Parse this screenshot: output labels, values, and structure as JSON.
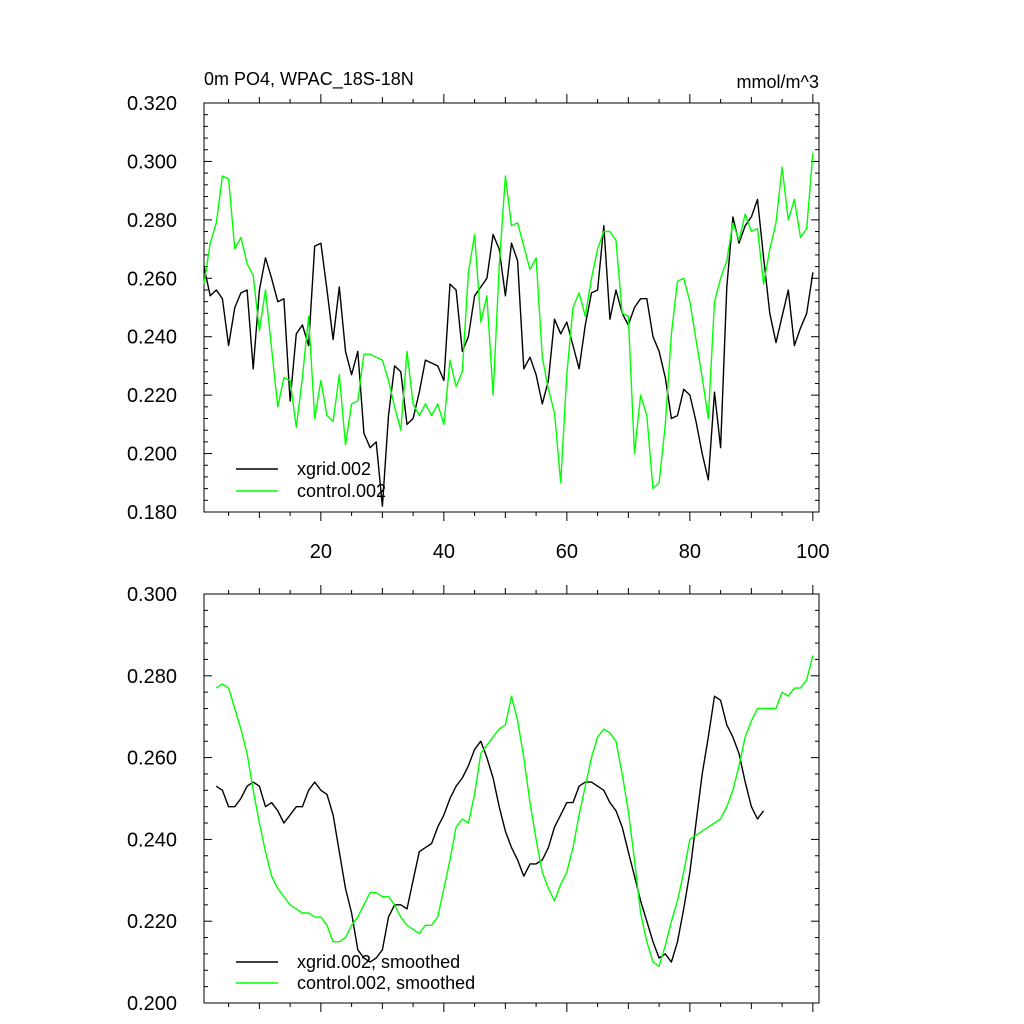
{
  "chart_data": [
    {
      "type": "line",
      "title": "0m PO4, WPAC_18S-18N",
      "units": "mmol/m^3",
      "xlim": [
        1,
        101
      ],
      "ylim": [
        0.18,
        0.32
      ],
      "x_ticks": [
        "20",
        "40",
        "60",
        "80",
        "100"
      ],
      "y_ticks": [
        "0.180",
        "0.200",
        "0.220",
        "0.240",
        "0.260",
        "0.280",
        "0.300",
        "0.320"
      ],
      "legend_position": "bottom-left",
      "series": [
        {
          "name": "xgrid.002",
          "color": "#000000",
          "x_start": 1,
          "values": [
            0.264,
            0.254,
            0.256,
            0.253,
            0.237,
            0.25,
            0.255,
            0.256,
            0.229,
            0.256,
            0.267,
            0.26,
            0.252,
            0.253,
            0.218,
            0.241,
            0.244,
            0.237,
            0.271,
            0.272,
            0.256,
            0.239,
            0.257,
            0.235,
            0.227,
            0.235,
            0.207,
            0.202,
            0.204,
            0.182,
            0.213,
            0.23,
            0.228,
            0.21,
            0.212,
            0.221,
            0.232,
            0.231,
            0.23,
            0.225,
            0.258,
            0.256,
            0.235,
            0.24,
            0.254,
            0.257,
            0.26,
            0.275,
            0.27,
            0.254,
            0.272,
            0.266,
            0.229,
            0.233,
            0.227,
            0.217,
            0.225,
            0.246,
            0.241,
            0.245,
            0.237,
            0.229,
            0.244,
            0.255,
            0.256,
            0.278,
            0.246,
            0.256,
            0.248,
            0.244,
            0.25,
            0.253,
            0.253,
            0.24,
            0.235,
            0.226,
            0.212,
            0.213,
            0.222,
            0.22,
            0.211,
            0.2,
            0.191,
            0.221,
            0.202,
            0.257,
            0.281,
            0.272,
            0.278,
            0.281,
            0.287,
            0.267,
            0.248,
            0.238,
            0.247,
            0.256,
            0.237,
            0.243,
            0.248,
            0.262
          ]
        },
        {
          "name": "control.002",
          "color": "#00ff00",
          "x_start": 1,
          "values": [
            0.258,
            0.272,
            0.279,
            0.295,
            0.294,
            0.27,
            0.274,
            0.265,
            0.261,
            0.242,
            0.256,
            0.236,
            0.216,
            0.226,
            0.225,
            0.209,
            0.226,
            0.247,
            0.212,
            0.225,
            0.213,
            0.211,
            0.227,
            0.203,
            0.217,
            0.218,
            0.234,
            0.234,
            0.233,
            0.232,
            0.225,
            0.216,
            0.208,
            0.235,
            0.217,
            0.213,
            0.217,
            0.213,
            0.217,
            0.21,
            0.232,
            0.223,
            0.228,
            0.262,
            0.275,
            0.245,
            0.254,
            0.22,
            0.264,
            0.295,
            0.278,
            0.279,
            0.271,
            0.263,
            0.267,
            0.233,
            0.222,
            0.214,
            0.19,
            0.227,
            0.25,
            0.255,
            0.247,
            0.26,
            0.27,
            0.276,
            0.276,
            0.273,
            0.248,
            0.247,
            0.2,
            0.22,
            0.213,
            0.188,
            0.19,
            0.21,
            0.241,
            0.259,
            0.26,
            0.252,
            0.239,
            0.226,
            0.212,
            0.252,
            0.26,
            0.266,
            0.279,
            0.273,
            0.282,
            0.276,
            0.277,
            0.258,
            0.27,
            0.279,
            0.298,
            0.28,
            0.287,
            0.274,
            0.277,
            0.303
          ]
        }
      ]
    },
    {
      "type": "line",
      "xlim": [
        1,
        101
      ],
      "ylim": [
        0.2,
        0.3
      ],
      "y_ticks": [
        "0.200",
        "0.220",
        "0.240",
        "0.260",
        "0.280",
        "0.300"
      ],
      "legend_position": "bottom-left",
      "series": [
        {
          "name": "xgrid.002, smoothed",
          "color": "#000000",
          "x_start": 3,
          "values": [
            0.253,
            0.252,
            0.248,
            0.248,
            0.25,
            0.253,
            0.254,
            0.253,
            0.248,
            0.249,
            0.247,
            0.244,
            0.246,
            0.248,
            0.248,
            0.252,
            0.254,
            0.252,
            0.251,
            0.246,
            0.237,
            0.228,
            0.222,
            0.213,
            0.211,
            0.21,
            0.211,
            0.213,
            0.221,
            0.224,
            0.224,
            0.223,
            0.23,
            0.237,
            0.238,
            0.239,
            0.243,
            0.246,
            0.25,
            0.253,
            0.255,
            0.258,
            0.262,
            0.264,
            0.26,
            0.255,
            0.248,
            0.242,
            0.238,
            0.235,
            0.231,
            0.234,
            0.234,
            0.235,
            0.238,
            0.243,
            0.246,
            0.249,
            0.249,
            0.253,
            0.254,
            0.254,
            0.253,
            0.252,
            0.249,
            0.247,
            0.243,
            0.237,
            0.231,
            0.225,
            0.22,
            0.215,
            0.211,
            0.212,
            0.21,
            0.215,
            0.223,
            0.232,
            0.244,
            0.256,
            0.265,
            0.275,
            0.274,
            0.268,
            0.265,
            0.261,
            0.254,
            0.248,
            0.245,
            0.247
          ]
        },
        {
          "name": "control.002, smoothed",
          "color": "#00ff00",
          "x_start": 3,
          "values": [
            0.277,
            0.278,
            0.277,
            0.272,
            0.267,
            0.261,
            0.252,
            0.244,
            0.237,
            0.231,
            0.228,
            0.226,
            0.224,
            0.223,
            0.222,
            0.222,
            0.221,
            0.221,
            0.219,
            0.215,
            0.215,
            0.216,
            0.219,
            0.221,
            0.224,
            0.227,
            0.227,
            0.226,
            0.226,
            0.224,
            0.221,
            0.219,
            0.218,
            0.217,
            0.219,
            0.219,
            0.221,
            0.228,
            0.235,
            0.243,
            0.245,
            0.244,
            0.251,
            0.261,
            0.263,
            0.265,
            0.267,
            0.268,
            0.275,
            0.269,
            0.26,
            0.249,
            0.24,
            0.232,
            0.228,
            0.225,
            0.229,
            0.232,
            0.238,
            0.246,
            0.253,
            0.26,
            0.265,
            0.267,
            0.266,
            0.264,
            0.256,
            0.247,
            0.235,
            0.222,
            0.215,
            0.21,
            0.209,
            0.214,
            0.22,
            0.225,
            0.232,
            0.24,
            0.241,
            0.242,
            0.243,
            0.244,
            0.245,
            0.248,
            0.252,
            0.258,
            0.265,
            0.269,
            0.272,
            0.272,
            0.272,
            0.272,
            0.276,
            0.275,
            0.277,
            0.277,
            0.279,
            0.285
          ]
        }
      ]
    }
  ]
}
